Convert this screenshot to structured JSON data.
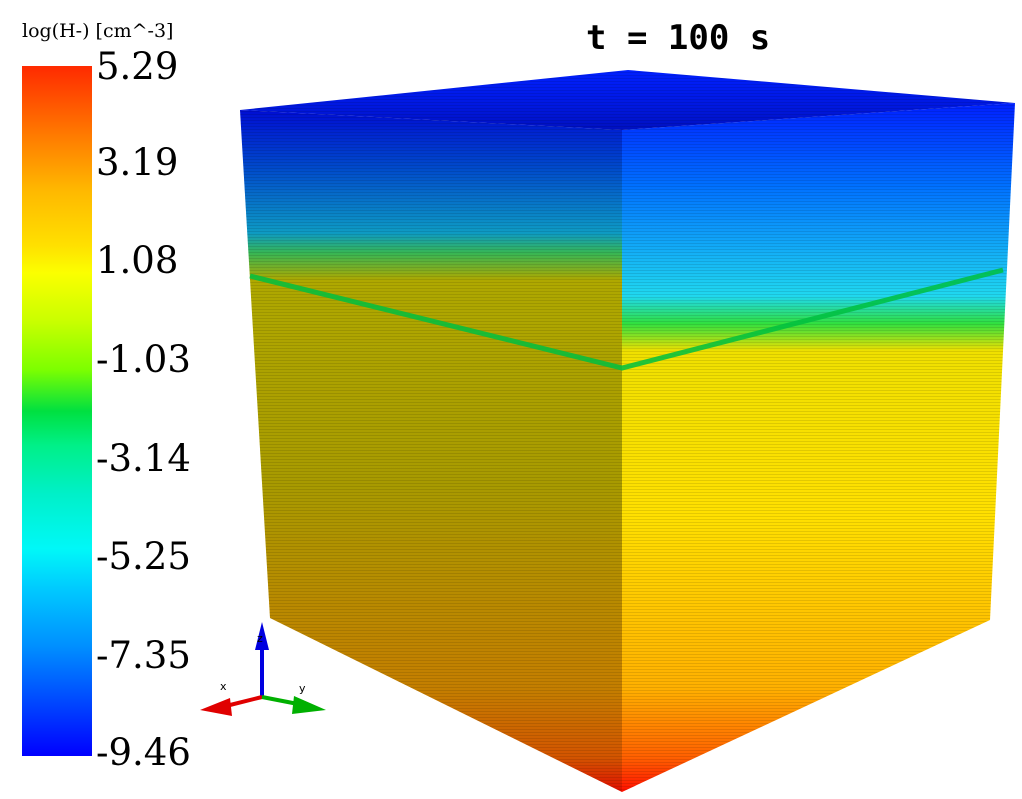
{
  "colorbar": {
    "title": "log(H-) [cm^-3]",
    "ticks": [
      "5.29",
      "3.19",
      "1.08",
      "-1.03",
      "-3.14",
      "-5.25",
      "-7.35",
      "-9.46"
    ],
    "colors": {
      "max": "#ff2a00",
      "high": "#ffb800",
      "mid": "#fbff00",
      "green": "#00e040",
      "cyan": "#00f8f8",
      "min": "#0000ff"
    }
  },
  "time_label": "t = 100 s",
  "axes_triad": {
    "x_label": "x",
    "y_label": "y",
    "z_label": "z",
    "x_color": "#e00000",
    "y_color": "#00b000",
    "z_color": "#0000e0"
  }
}
